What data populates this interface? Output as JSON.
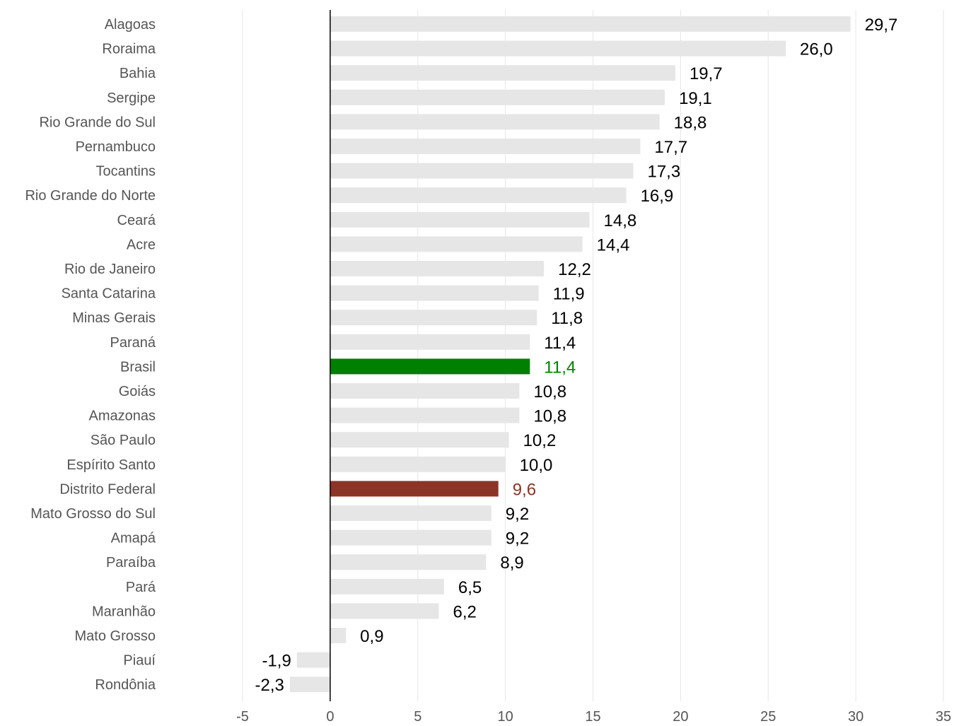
{
  "chart_data": {
    "type": "bar",
    "orientation": "horizontal",
    "title": "",
    "xlabel": "",
    "ylabel": "",
    "xlim": [
      -5,
      35
    ],
    "xticks": [
      -5,
      0,
      5,
      10,
      15,
      20,
      25,
      30,
      35
    ],
    "grid": "vertical",
    "categories": [
      "Alagoas",
      "Roraima",
      "Bahia",
      "Sergipe",
      "Rio Grande do Sul",
      "Pernambuco",
      "Tocantins",
      "Rio Grande do Norte",
      "Ceará",
      "Acre",
      "Rio de Janeiro",
      "Santa Catarina",
      "Minas Gerais",
      "Paraná",
      "Brasil",
      "Goiás",
      "Amazonas",
      "São Paulo",
      "Espírito Santo",
      "Distrito Federal",
      "Mato Grosso do Sul",
      "Amapá",
      "Paraíba",
      "Pará",
      "Maranhão",
      "Mato Grosso",
      "Piauí",
      "Rondônia"
    ],
    "values": [
      29.7,
      26.0,
      19.7,
      19.1,
      18.8,
      17.7,
      17.3,
      16.9,
      14.8,
      14.4,
      12.2,
      11.9,
      11.8,
      11.4,
      11.4,
      10.8,
      10.8,
      10.2,
      10.0,
      9.6,
      9.2,
      9.2,
      8.9,
      6.5,
      6.2,
      0.9,
      -1.9,
      -2.3
    ],
    "value_labels": [
      "29,7",
      "26,0",
      "19,7",
      "19,1",
      "18,8",
      "17,7",
      "17,3",
      "16,9",
      "14,8",
      "14,4",
      "12,2",
      "11,9",
      "11,8",
      "11,4",
      "11,4",
      "10,8",
      "10,8",
      "10,2",
      "10,0",
      "9,6",
      "9,2",
      "9,2",
      "8,9",
      "6,5",
      "6,2",
      "0,9",
      "-1,9",
      "-2,3"
    ],
    "tick_labels": [
      "-5",
      "0",
      "5",
      "10",
      "15",
      "20",
      "25",
      "30",
      "35"
    ],
    "highlights": {
      "Brasil": "#008000",
      "Distrito Federal": "#8b3526"
    },
    "colors": {
      "default_bar": "#e6e6e6",
      "grid": "#e6e6e6",
      "zero_line": "#000000",
      "label_text": "#000000"
    }
  }
}
